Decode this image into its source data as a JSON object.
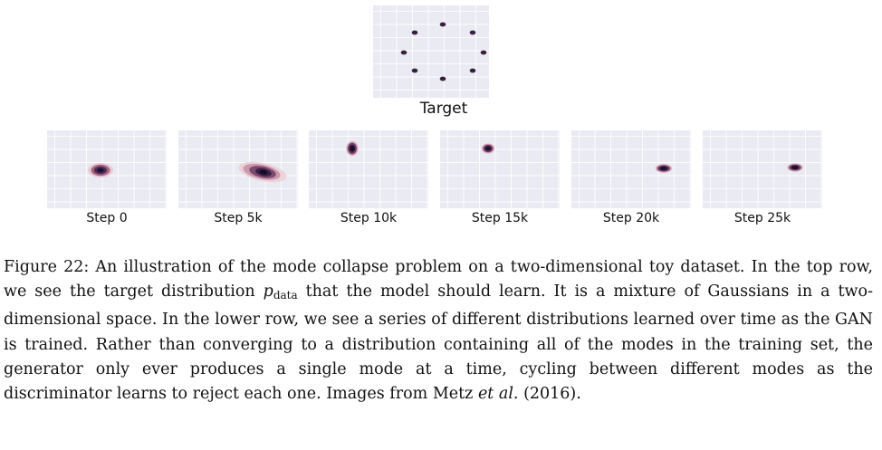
{
  "figure": {
    "target": {
      "label": "Target"
    },
    "steps": [
      {
        "label": "Step 0"
      },
      {
        "label": "Step 5k"
      },
      {
        "label": "Step 10k"
      },
      {
        "label": "Step 15k"
      },
      {
        "label": "Step 20k"
      },
      {
        "label": "Step 25k"
      }
    ],
    "colors": {
      "panel_background": "#eaeaf2",
      "density_core": "#1b1030",
      "density_mid": "#5d3668",
      "density_outer": "#dfb7c4"
    }
  },
  "caption": {
    "figure_label": "Figure 22:",
    "text_1": "An illustration of the mode collapse problem on a two-dimensional toy dataset. In the top row, we see the target distribution",
    "math_var": "p",
    "math_sub": "data",
    "text_2": "that the model should learn. It is a mixture of Gaussians in a two-dimensional space. In the lower row, we see a series of different distributions learned over time as the GAN is trained. Rather than converging to a distribution containing all of the modes in the training set, the generator only ever produces a single mode at a time, cycling between different modes as the discriminator learns to reject each one. Images from Metz",
    "et_al": "et al.",
    "text_3": "(2016)."
  }
}
